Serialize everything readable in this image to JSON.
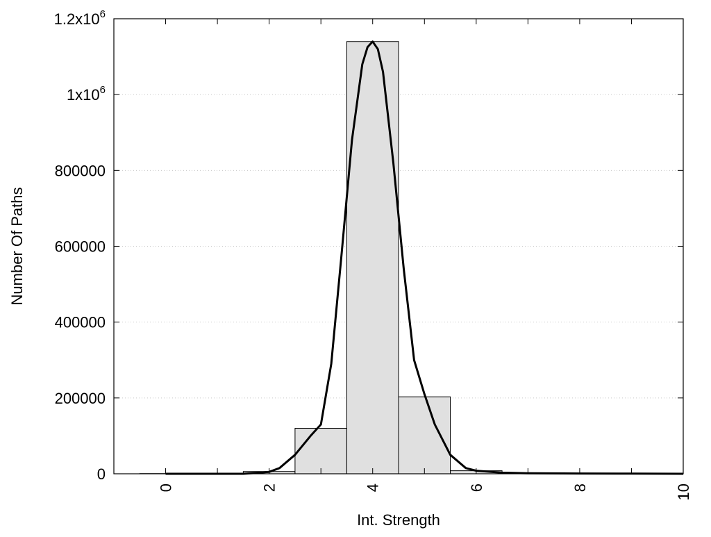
{
  "chart_data": {
    "type": "bar",
    "xlabel": "Int. Strength",
    "ylabel": "Number Of Paths",
    "xlim": [
      -1,
      10
    ],
    "ylim": [
      0,
      1200000
    ],
    "grid": "horizontal dotted",
    "x_ticks": [
      {
        "value": 0,
        "label": "0"
      },
      {
        "value": 2,
        "label": "2"
      },
      {
        "value": 4,
        "label": "4"
      },
      {
        "value": 6,
        "label": "6"
      },
      {
        "value": 8,
        "label": "8"
      },
      {
        "value": 10,
        "label": "10"
      }
    ],
    "y_ticks": [
      {
        "value": 0,
        "label": "0"
      },
      {
        "value": 200000,
        "label": "200000"
      },
      {
        "value": 400000,
        "label": "400000"
      },
      {
        "value": 600000,
        "label": "600000"
      },
      {
        "value": 800000,
        "label": "800000"
      },
      {
        "value": 1000000,
        "label": "1x10",
        "sup": "6"
      },
      {
        "value": 1200000,
        "label": "1.2x10",
        "sup": "6"
      }
    ],
    "bars": [
      {
        "x": 0,
        "value": 500
      },
      {
        "x": 1,
        "value": 1000
      },
      {
        "x": 2,
        "value": 6000
      },
      {
        "x": 3,
        "value": 120000
      },
      {
        "x": 4,
        "value": 1140000
      },
      {
        "x": 5,
        "value": 203000
      },
      {
        "x": 6,
        "value": 8000
      },
      {
        "x": 7,
        "value": 2000
      },
      {
        "x": 8,
        "value": 1000
      },
      {
        "x": 9,
        "value": 500
      }
    ],
    "fit_curve": {
      "x": [
        0,
        0.5,
        1,
        1.5,
        2,
        2.2,
        2.5,
        2.8,
        3.0,
        3.2,
        3.4,
        3.6,
        3.8,
        3.9,
        4.0,
        4.1,
        4.2,
        4.4,
        4.6,
        4.8,
        5.0,
        5.2,
        5.5,
        5.8,
        6.0,
        6.5,
        7,
        8,
        9,
        10
      ],
      "y": [
        0,
        0,
        0,
        0,
        5000,
        15000,
        50000,
        100000,
        130000,
        290000,
        580000,
        880000,
        1080000,
        1125000,
        1140000,
        1120000,
        1060000,
        820000,
        540000,
        300000,
        210000,
        130000,
        50000,
        15000,
        8000,
        3000,
        1500,
        800,
        300,
        0
      ]
    }
  }
}
